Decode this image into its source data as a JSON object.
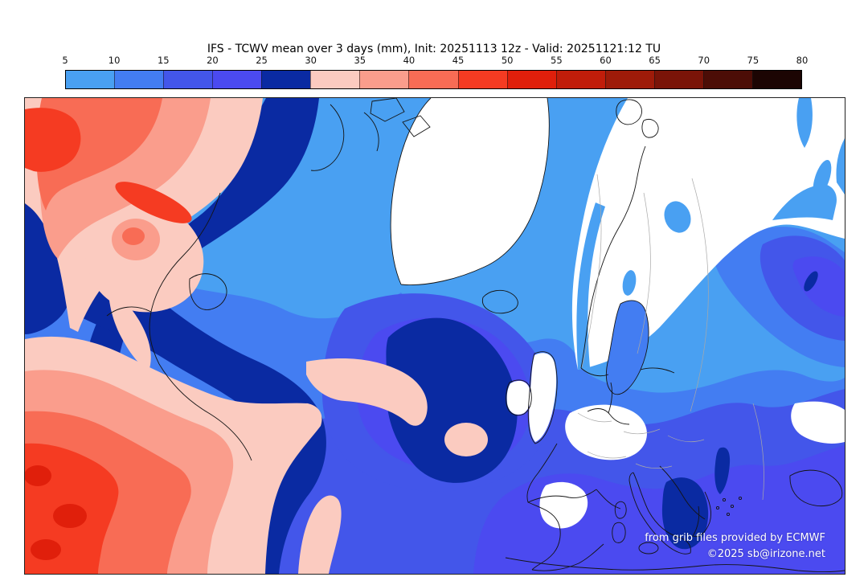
{
  "title": "IFS - TCWV mean over 3 days (mm), Init: 20251113 12z - Valid: 20251121:12 TU",
  "colorbar": {
    "ticks": [
      "5",
      "10",
      "15",
      "20",
      "25",
      "30",
      "35",
      "40",
      "45",
      "50",
      "55",
      "60",
      "65",
      "70",
      "75",
      "80"
    ],
    "levels": [
      {
        "range": "5-10",
        "color": "#49a0f2"
      },
      {
        "range": "10-15",
        "color": "#437df2"
      },
      {
        "range": "15-20",
        "color": "#4356ea"
      },
      {
        "range": "20-25",
        "color": "#4b4af0"
      },
      {
        "range": "25-30",
        "color": "#0a2aa2"
      },
      {
        "range": "30-35",
        "color": "#fbcbc0"
      },
      {
        "range": "35-40",
        "color": "#fa9d8c"
      },
      {
        "range": "40-45",
        "color": "#f86c55"
      },
      {
        "range": "45-50",
        "color": "#f53b22"
      },
      {
        "range": "50-55",
        "color": "#e01f0b"
      },
      {
        "range": "55-60",
        "color": "#c11d0a"
      },
      {
        "range": "60-65",
        "color": "#9e1b09"
      },
      {
        "range": "65-70",
        "color": "#7a1408"
      },
      {
        "range": "70-75",
        "color": "#4c0d06"
      },
      {
        "range": "75-80",
        "color": "#1c0503"
      }
    ]
  },
  "map": {
    "attribution_line1": "from grib files provided by ECMWF",
    "attribution_line2": "©2025 sb@irizone.net",
    "below_min_color": "#ffffff",
    "coastline_color": "#141414",
    "border_color": "#a8a8a8"
  }
}
